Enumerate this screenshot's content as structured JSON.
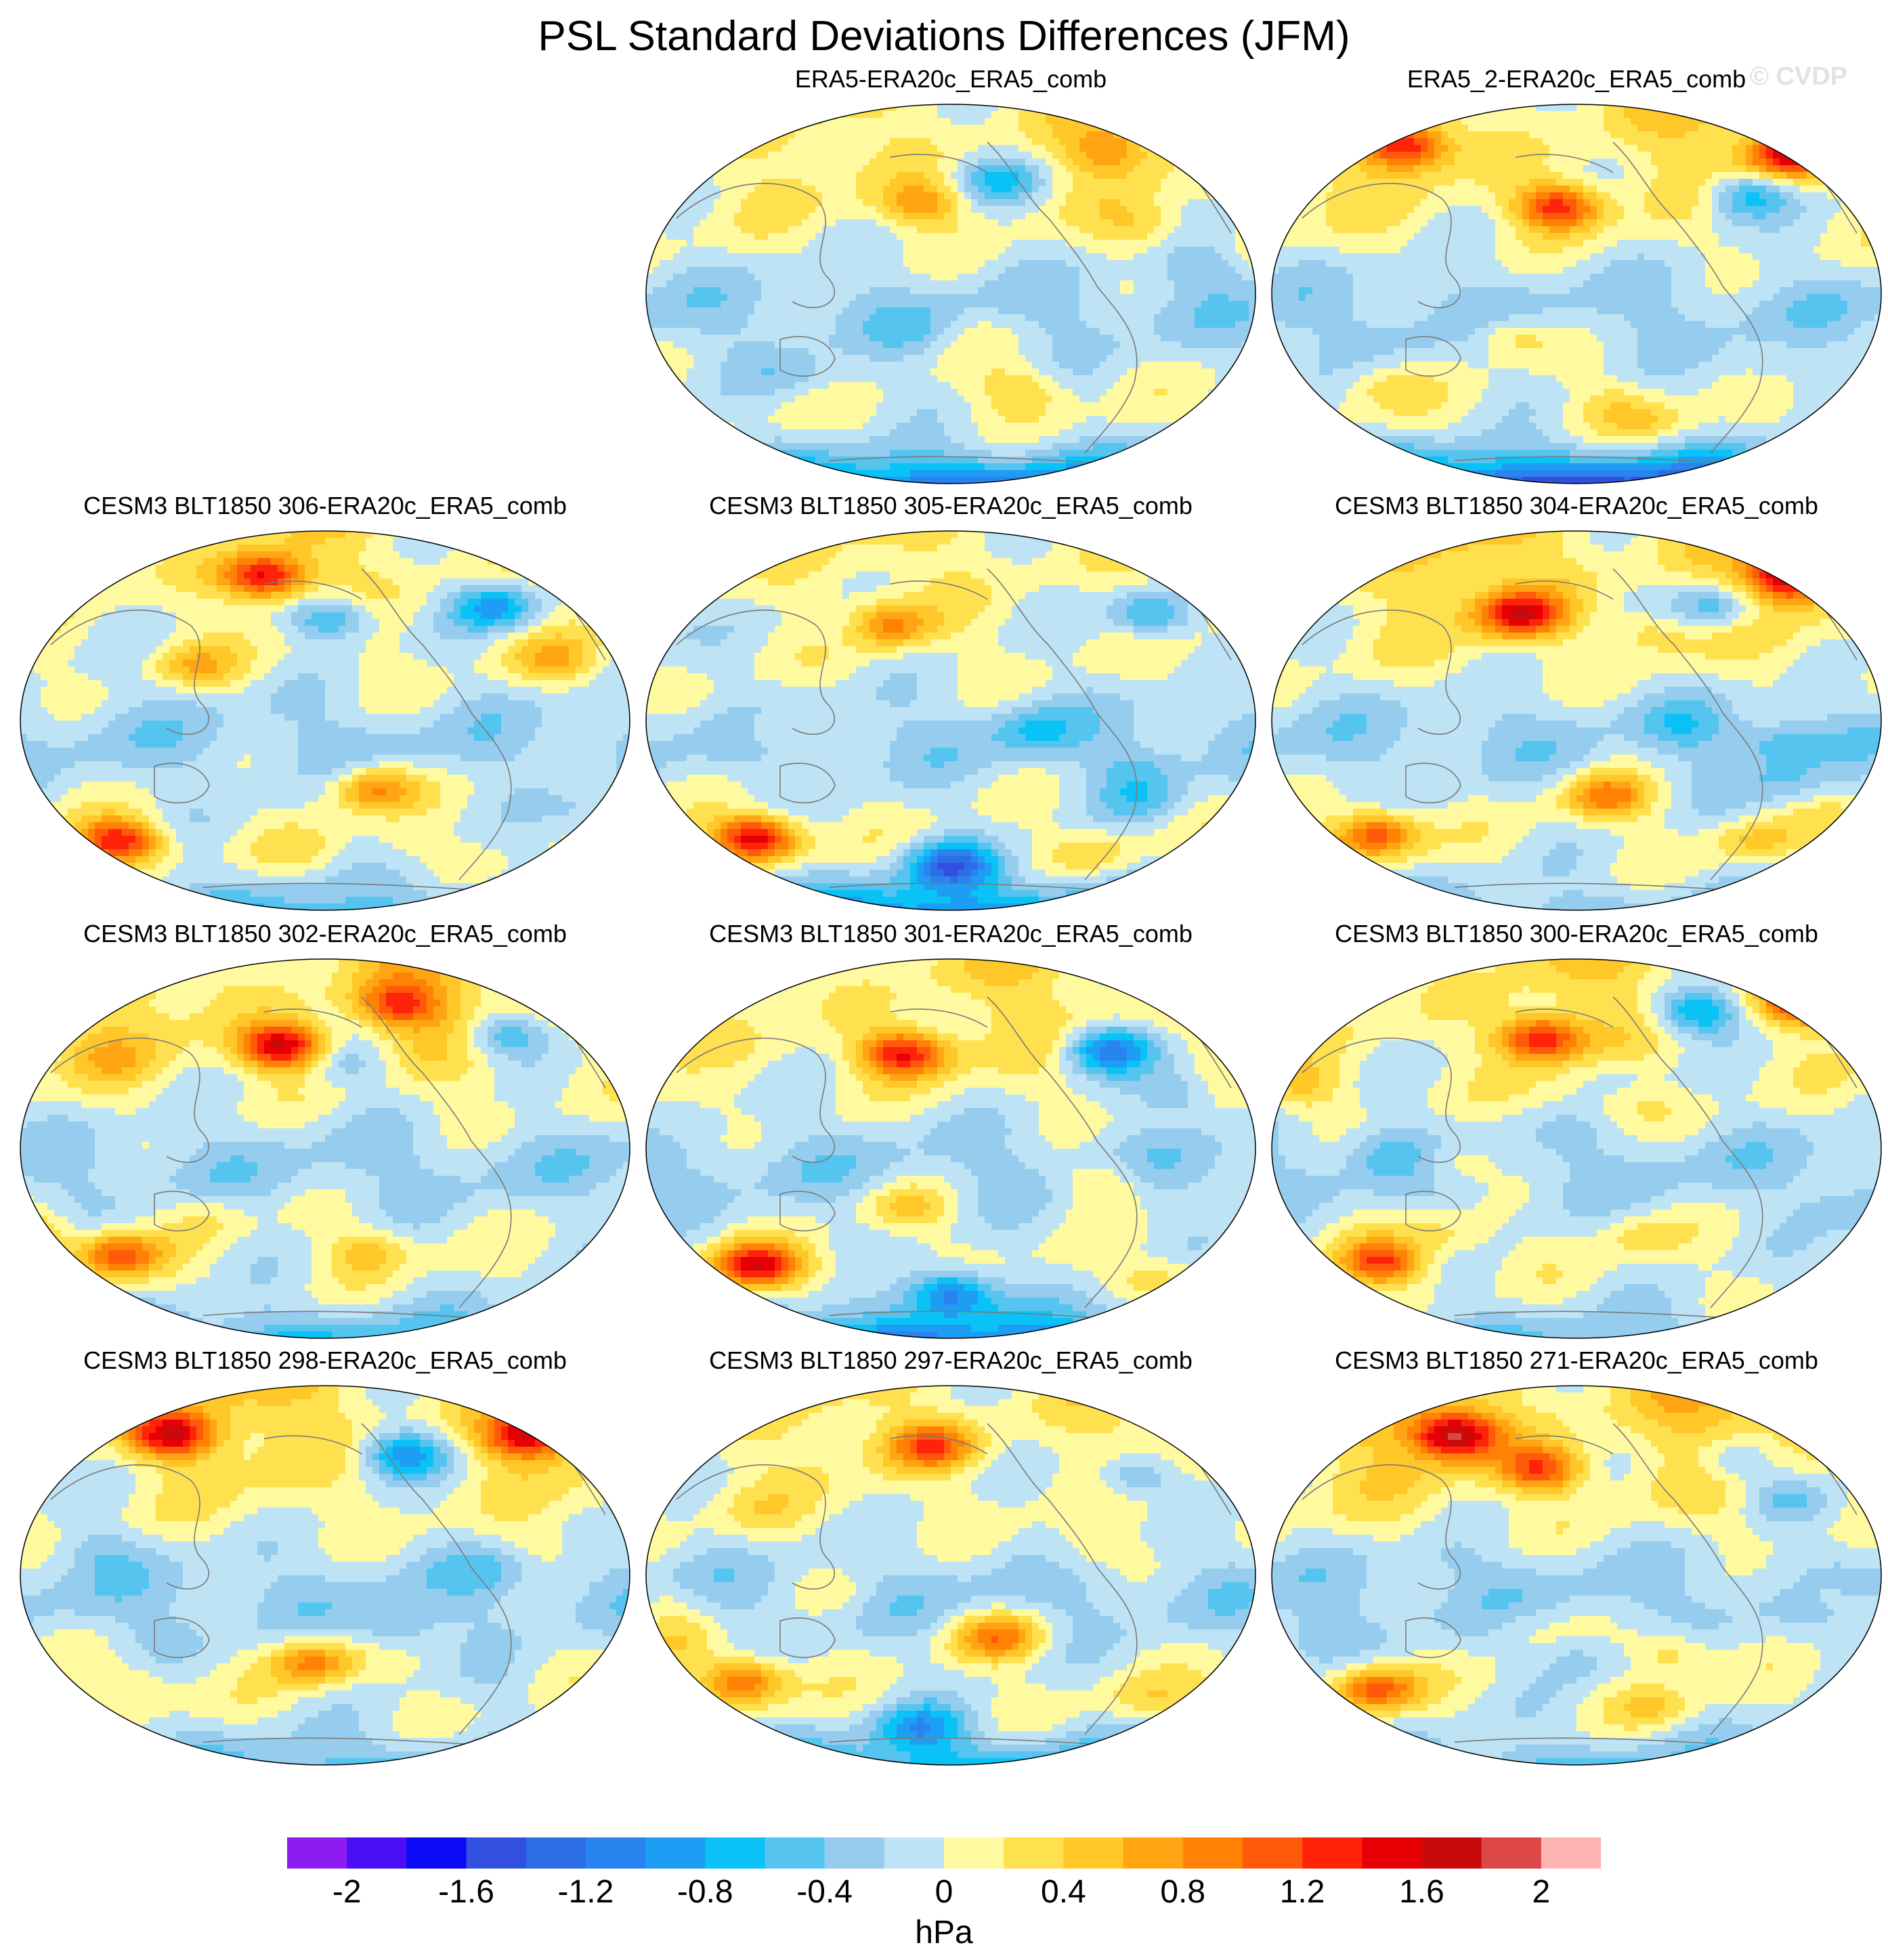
{
  "title": "PSL Standard Deviations Differences (JFM)",
  "copyright": "© CVDP",
  "chart_data": {
    "type": "heatmap",
    "title": "PSL Standard Deviations Differences (JFM)",
    "projection": "Robinson (Pacific-centered), global",
    "season": "JFM",
    "variable": "PSL standard deviation difference",
    "units": "hPa",
    "colorbar": {
      "levels": [
        -2.2,
        -2.0,
        -1.8,
        -1.6,
        -1.4,
        -1.2,
        -1.0,
        -0.8,
        -0.6,
        -0.4,
        -0.2,
        0.0,
        0.2,
        0.4,
        0.6,
        0.8,
        1.0,
        1.2,
        1.4,
        1.6,
        1.8,
        2.0,
        2.2
      ],
      "tick_labels": [
        "-2",
        "-1.6",
        "-1.2",
        "-0.8",
        "-0.4",
        "0",
        "0.4",
        "0.8",
        "1.2",
        "1.6",
        "2"
      ],
      "tick_values": [
        -2.0,
        -1.6,
        -1.2,
        -0.8,
        -0.4,
        0.0,
        0.4,
        0.8,
        1.2,
        1.6,
        2.0
      ],
      "colors": [
        "#8c1cf0",
        "#4b0ff5",
        "#0a0af5",
        "#3250e0",
        "#2d6ee6",
        "#2a84f0",
        "#1e9df5",
        "#0ac2f5",
        "#55c5f0",
        "#96cdee",
        "#bde3f5",
        "#fffaa0",
        "#ffe150",
        "#ffc828",
        "#ffa514",
        "#ff8205",
        "#ff5a0a",
        "#ff230a",
        "#e60005",
        "#c80a0a",
        "#dc4646",
        "#ffb4b4"
      ]
    },
    "panels": [
      {
        "name": "ERA5-ERA20c_ERA5_comb",
        "row": 0,
        "col": 1,
        "seed": 11,
        "nh_bias": 0.35,
        "sh_bias": -1.2,
        "pos_centers": [
          [
            0.45,
            0.26,
            0.7
          ],
          [
            0.76,
            0.12,
            0.6
          ]
        ],
        "neg_centers": [
          [
            0.58,
            0.2,
            -0.6
          ]
        ]
      },
      {
        "name": "ERA5_2-ERA20c_ERA5_comb",
        "row": 0,
        "col": 2,
        "seed": 12,
        "nh_bias": 0.45,
        "sh_bias": -1.55,
        "pos_centers": [
          [
            0.47,
            0.27,
            1.3
          ],
          [
            0.85,
            0.13,
            1.5
          ],
          [
            0.22,
            0.11,
            1.2
          ]
        ],
        "neg_centers": [
          [
            0.78,
            0.24,
            -0.8
          ]
        ]
      },
      {
        "name": "CESM3 BLT1850 306-ERA20c_ERA5_comb",
        "row": 1,
        "col": 0,
        "seed": 21,
        "nh_bias": 0.3,
        "sh_bias": -0.55,
        "pos_centers": [
          [
            0.4,
            0.12,
            1.4
          ],
          [
            0.16,
            0.82,
            1.4
          ],
          [
            0.58,
            0.68,
            0.9
          ]
        ],
        "neg_centers": [
          [
            0.51,
            0.23,
            -0.8
          ],
          [
            0.78,
            0.2,
            -0.9
          ]
        ]
      },
      {
        "name": "CESM3 BLT1850 305-ERA20c_ERA5_comb",
        "row": 1,
        "col": 1,
        "seed": 22,
        "nh_bias": 0.25,
        "sh_bias": -1.0,
        "pos_centers": [
          [
            0.4,
            0.25,
            0.8
          ],
          [
            0.18,
            0.81,
            1.6
          ]
        ],
        "neg_centers": [
          [
            0.83,
            0.22,
            -0.8
          ],
          [
            0.5,
            0.88,
            -1.2
          ]
        ]
      },
      {
        "name": "CESM3 BLT1850 304-ERA20c_ERA5_comb",
        "row": 1,
        "col": 2,
        "seed": 23,
        "nh_bias": 0.55,
        "sh_bias": -0.35,
        "pos_centers": [
          [
            0.41,
            0.22,
            1.4
          ],
          [
            0.85,
            0.12,
            1.5
          ],
          [
            0.17,
            0.8,
            1.2
          ],
          [
            0.55,
            0.7,
            0.9
          ]
        ],
        "neg_centers": [
          [
            0.73,
            0.2,
            -0.7
          ]
        ]
      },
      {
        "name": "CESM3 BLT1850 302-ERA20c_ERA5_comb",
        "row": 2,
        "col": 0,
        "seed": 31,
        "nh_bias": 0.55,
        "sh_bias": -0.6,
        "pos_centers": [
          [
            0.43,
            0.23,
            1.6
          ],
          [
            0.62,
            0.12,
            1.0
          ],
          [
            0.16,
            0.78,
            1.1
          ]
        ],
        "neg_centers": [
          [
            0.8,
            0.2,
            -0.7
          ]
        ]
      },
      {
        "name": "CESM3 BLT1850 301-ERA20c_ERA5_comb",
        "row": 2,
        "col": 1,
        "seed": 32,
        "nh_bias": 0.4,
        "sh_bias": -1.0,
        "pos_centers": [
          [
            0.42,
            0.25,
            1.3
          ],
          [
            0.18,
            0.81,
            1.5
          ]
        ],
        "neg_centers": [
          [
            0.76,
            0.24,
            -1.1
          ],
          [
            0.5,
            0.88,
            -1.1
          ]
        ]
      },
      {
        "name": "CESM3 BLT1850 300-ERA20c_ERA5_comb",
        "row": 2,
        "col": 2,
        "seed": 33,
        "nh_bias": 0.4,
        "sh_bias": -0.4,
        "pos_centers": [
          [
            0.44,
            0.21,
            1.3
          ],
          [
            0.88,
            0.11,
            1.4
          ],
          [
            0.18,
            0.8,
            1.2
          ]
        ],
        "neg_centers": [
          [
            0.7,
            0.14,
            -0.9
          ]
        ]
      },
      {
        "name": "CESM3 BLT1850 298-ERA20c_ERA5_comb",
        "row": 3,
        "col": 0,
        "seed": 41,
        "nh_bias": 0.5,
        "sh_bias": -0.5,
        "pos_centers": [
          [
            0.25,
            0.13,
            1.4
          ],
          [
            0.83,
            0.13,
            1.4
          ],
          [
            0.48,
            0.73,
            0.9
          ]
        ],
        "neg_centers": [
          [
            0.63,
            0.18,
            -0.9
          ]
        ]
      },
      {
        "name": "CESM3 BLT1850 297-ERA20c_ERA5_comb",
        "row": 3,
        "col": 1,
        "seed": 42,
        "nh_bias": 0.35,
        "sh_bias": -0.7,
        "pos_centers": [
          [
            0.47,
            0.16,
            1.0
          ],
          [
            0.16,
            0.78,
            1.1
          ],
          [
            0.58,
            0.66,
            0.8
          ]
        ],
        "neg_centers": [
          [
            0.8,
            0.24,
            -0.6
          ],
          [
            0.45,
            0.9,
            -0.8
          ]
        ]
      },
      {
        "name": "CESM3 BLT1850 271-ERA20c_ERA5_comb",
        "row": 3,
        "col": 2,
        "seed": 43,
        "nh_bias": 0.65,
        "sh_bias": -0.45,
        "pos_centers": [
          [
            0.3,
            0.13,
            1.6
          ],
          [
            0.44,
            0.22,
            1.1
          ],
          [
            0.17,
            0.8,
            1.1
          ]
        ],
        "neg_centers": [
          [
            0.76,
            0.2,
            -0.6
          ]
        ]
      }
    ]
  }
}
